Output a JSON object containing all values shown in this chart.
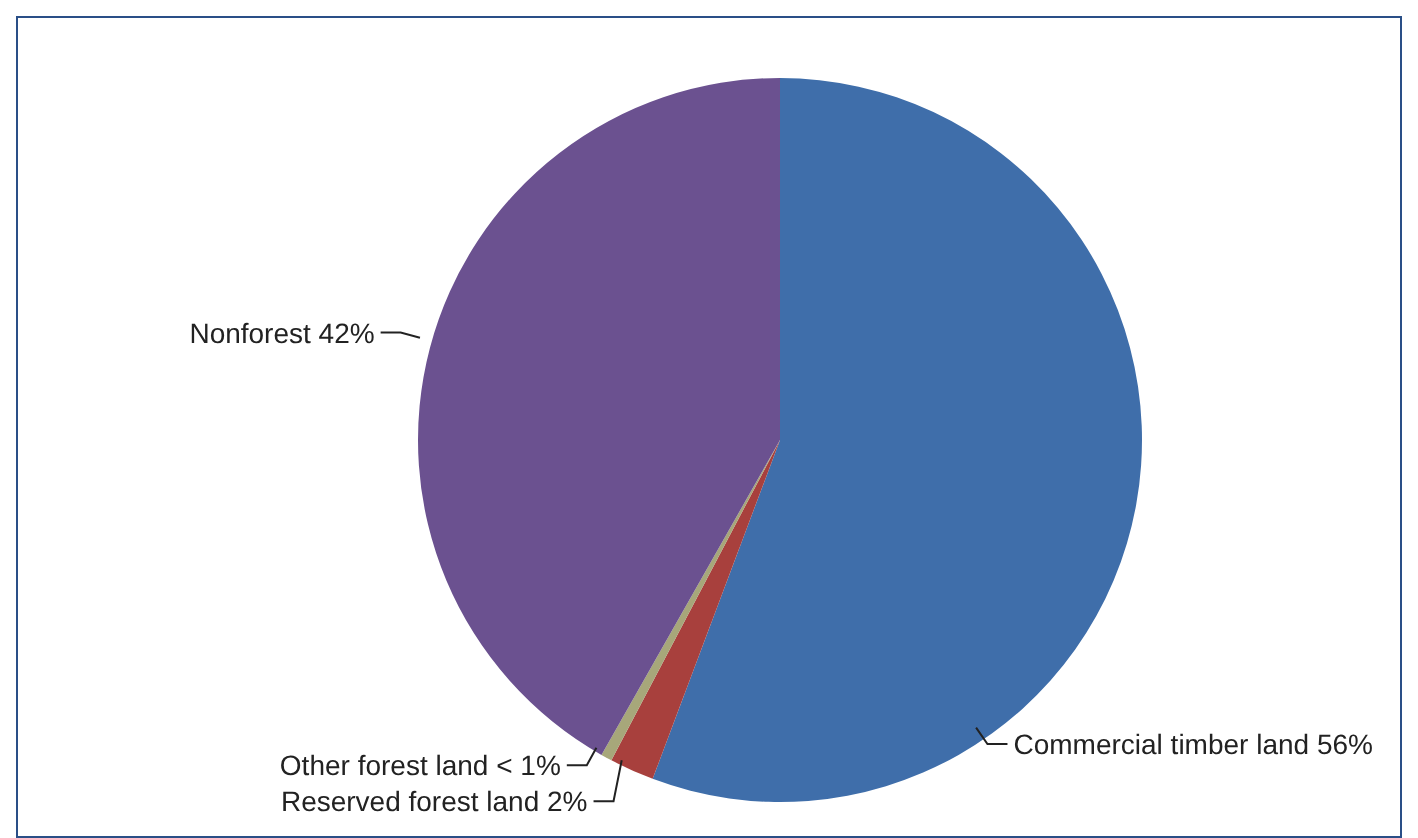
{
  "chart_data": {
    "type": "pie",
    "categories": [
      "Commercial timber land",
      "Reserved forest land",
      "Other forest land",
      "Nonforest"
    ],
    "values": [
      56,
      2,
      0.5,
      42
    ],
    "value_labels": [
      "56%",
      "2%",
      "< 1%",
      "42%"
    ],
    "colors": [
      "#3f6eaa",
      "#a8403d",
      "#a7a77a",
      "#6b5190"
    ],
    "legend": false
  }
}
